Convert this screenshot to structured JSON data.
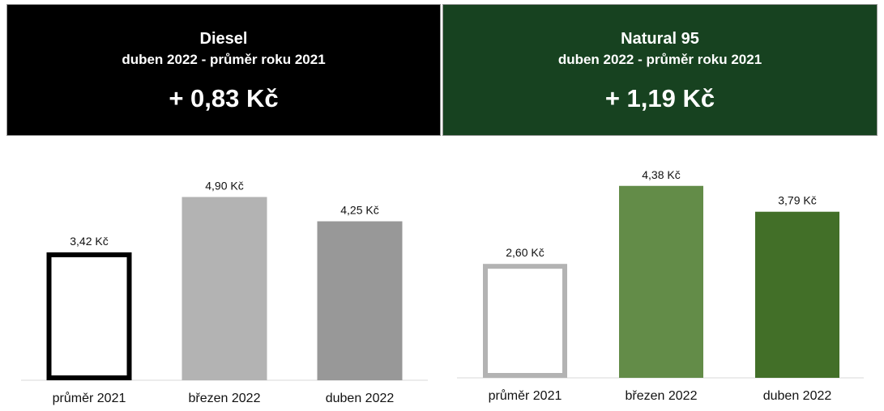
{
  "panels": [
    {
      "title": "Diesel",
      "subtitle": "duben 2022 -  průměr roku 2021",
      "delta": "+ 0,83 Kč"
    },
    {
      "title": "Natural 95",
      "subtitle": "duben 2022 -  průměr roku 2021",
      "delta": "+ 1,19 Kč"
    }
  ],
  "chart_data": [
    {
      "type": "bar",
      "categories": [
        "průměr 2021",
        "březen 2022",
        "duben 2022"
      ],
      "values": [
        3.42,
        4.9,
        4.25
      ],
      "data_labels": [
        "3,42 Kč",
        "4,90 Kč",
        "4,25 Kč"
      ],
      "title": "",
      "xlabel": "",
      "ylabel": "",
      "ylim": [
        0,
        5.3
      ],
      "grid": false,
      "colors": [
        "#ffffff",
        "#b3b3b3",
        "#989898"
      ],
      "outline_colors": [
        "#000000",
        "none",
        "none"
      ]
    },
    {
      "type": "bar",
      "categories": [
        "průměr 2021",
        "březen 2022",
        "duben 2022"
      ],
      "values": [
        2.6,
        4.38,
        3.79
      ],
      "data_labels": [
        "2,60 Kč",
        "4,38 Kč",
        "3,79 Kč"
      ],
      "title": "",
      "xlabel": "",
      "ylabel": "",
      "ylim": [
        0,
        4.8
      ],
      "grid": false,
      "colors": [
        "#ffffff",
        "#638c48",
        "#426f28"
      ],
      "outline_colors": [
        "#b3b3b3",
        "none",
        "none"
      ]
    }
  ]
}
